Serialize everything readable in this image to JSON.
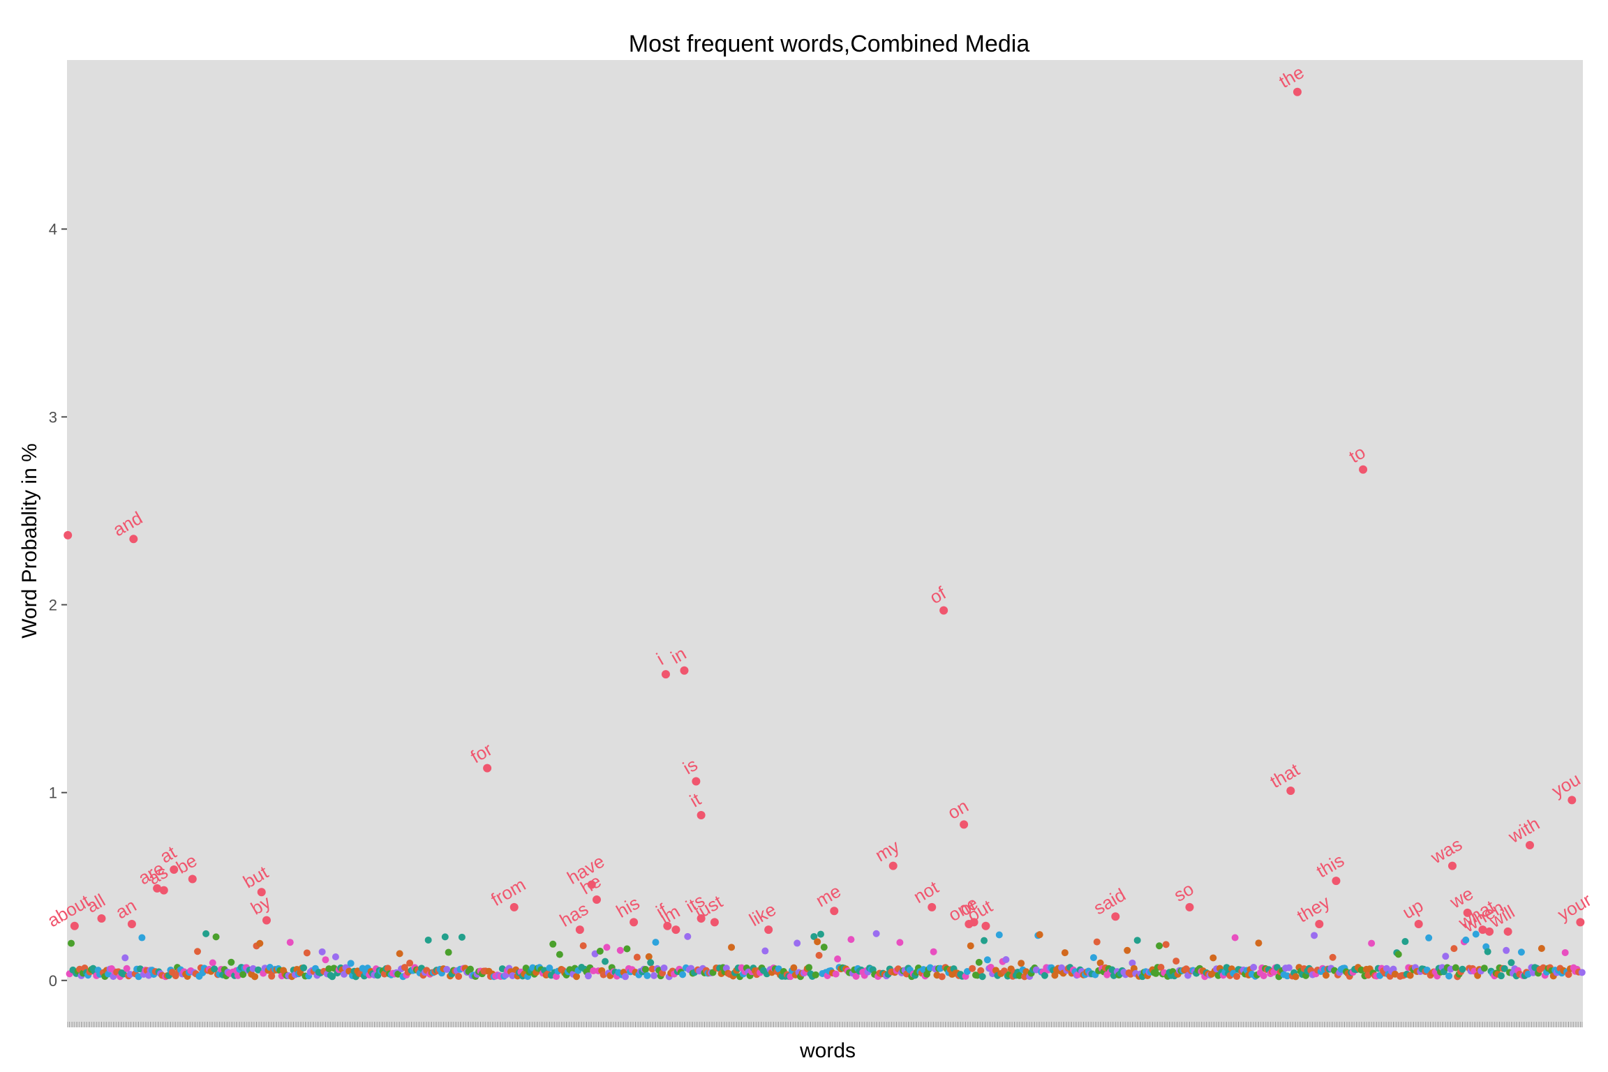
{
  "chart_data": {
    "type": "scatter",
    "title": "Most frequent words,Combined Media",
    "xlabel": "words",
    "ylabel": "Word Probablity in %",
    "ylim": [
      -0.22,
      4.9
    ],
    "yticks": [
      0,
      1,
      2,
      3,
      4
    ],
    "ytick_labels": [
      "0",
      "1",
      "2",
      "3",
      "4"
    ],
    "grid": false,
    "panel_color": "#dedede",
    "label_color": "#f0566e",
    "labeled_points": [
      {
        "word": "",
        "x": 1,
        "y": 2.37
      },
      {
        "word": "about",
        "x": 5,
        "y": 0.29
      },
      {
        "word": "all",
        "x": 21,
        "y": 0.33
      },
      {
        "word": "an",
        "x": 39,
        "y": 0.3
      },
      {
        "word": "and",
        "x": 40,
        "y": 2.35
      },
      {
        "word": "are",
        "x": 54,
        "y": 0.49
      },
      {
        "word": "as",
        "x": 58,
        "y": 0.48
      },
      {
        "word": "at",
        "x": 64,
        "y": 0.59
      },
      {
        "word": "be",
        "x": 75,
        "y": 0.54
      },
      {
        "word": "but",
        "x": 116,
        "y": 0.47
      },
      {
        "word": "by",
        "x": 119,
        "y": 0.32
      },
      {
        "word": "for",
        "x": 250,
        "y": 1.13
      },
      {
        "word": "from",
        "x": 266,
        "y": 0.39
      },
      {
        "word": "has",
        "x": 305,
        "y": 0.27
      },
      {
        "word": "have",
        "x": 312,
        "y": 0.51
      },
      {
        "word": "he",
        "x": 315,
        "y": 0.43
      },
      {
        "word": "his",
        "x": 337,
        "y": 0.31
      },
      {
        "word": "i",
        "x": 356,
        "y": 1.63
      },
      {
        "word": "if",
        "x": 357,
        "y": 0.29
      },
      {
        "word": "in",
        "x": 367,
        "y": 1.65
      },
      {
        "word": "im",
        "x": 362,
        "y": 0.27
      },
      {
        "word": "is",
        "x": 374,
        "y": 1.06
      },
      {
        "word": "it",
        "x": 377,
        "y": 0.88
      },
      {
        "word": "its",
        "x": 377,
        "y": 0.33
      },
      {
        "word": "just",
        "x": 385,
        "y": 0.31
      },
      {
        "word": "like",
        "x": 417,
        "y": 0.27
      },
      {
        "word": "me",
        "x": 456,
        "y": 0.37
      },
      {
        "word": "my",
        "x": 491,
        "y": 0.61
      },
      {
        "word": "not",
        "x": 514,
        "y": 0.39
      },
      {
        "word": "of",
        "x": 521,
        "y": 1.97
      },
      {
        "word": "on",
        "x": 533,
        "y": 0.83
      },
      {
        "word": "one",
        "x": 536,
        "y": 0.3
      },
      {
        "word": "or",
        "x": 539,
        "y": 0.31
      },
      {
        "word": "out",
        "x": 546,
        "y": 0.29
      },
      {
        "word": "said",
        "x": 623,
        "y": 0.34
      },
      {
        "word": "so",
        "x": 667,
        "y": 0.39
      },
      {
        "word": "that",
        "x": 727,
        "y": 1.01
      },
      {
        "word": "the",
        "x": 731,
        "y": 4.73
      },
      {
        "word": "they",
        "x": 744,
        "y": 0.3
      },
      {
        "word": "this",
        "x": 754,
        "y": 0.53
      },
      {
        "word": "to",
        "x": 770,
        "y": 2.72
      },
      {
        "word": "up",
        "x": 803,
        "y": 0.3
      },
      {
        "word": "was",
        "x": 823,
        "y": 0.61
      },
      {
        "word": "we",
        "x": 832,
        "y": 0.36
      },
      {
        "word": "what",
        "x": 841,
        "y": 0.27
      },
      {
        "word": "when",
        "x": 845,
        "y": 0.26
      },
      {
        "word": "will",
        "x": 856,
        "y": 0.26
      },
      {
        "word": "with",
        "x": 869,
        "y": 0.72
      },
      {
        "word": "you",
        "x": 894,
        "y": 0.96
      },
      {
        "word": "your",
        "x": 899,
        "y": 0.31
      }
    ]
  }
}
